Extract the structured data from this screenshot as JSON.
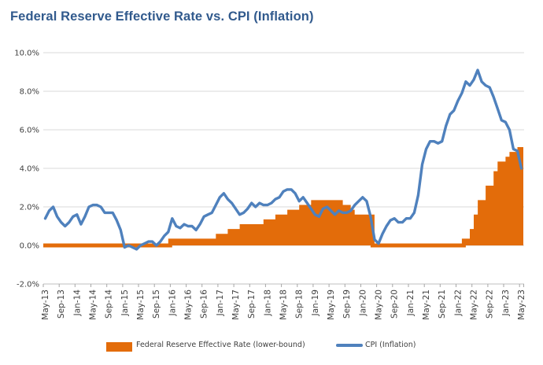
{
  "title": "Federal Reserve Effective Rate vs. CPI (Inflation)",
  "colors": {
    "background": "#FFFFFF",
    "fed": "#E36C0A",
    "cpi": "#4F81BD",
    "title": "#315A8D",
    "axis_text": "#3F3F3F",
    "gridline": "#D9D9D9",
    "axis_line": "#BFBFBF",
    "tick": "#A6A6A6"
  },
  "legend": {
    "items": [
      {
        "label": "Federal Reserve Effective Rate (lower-bound)",
        "swatch": "orange-rect"
      },
      {
        "label": "CPI (Inflation)",
        "swatch": "blue-line"
      }
    ],
    "position": "bottom"
  },
  "y_axis": {
    "tick_labels": [
      "10.0%",
      "8.0%",
      "6.0%",
      "4.0%",
      "2.0%",
      "0.0%",
      "-2.0%"
    ],
    "tick_values": [
      10,
      8,
      6,
      4,
      2,
      0,
      -2
    ]
  },
  "x_axis": {
    "tick_labels": [
      "May-13",
      "Sep-13",
      "Jan-14",
      "May-14",
      "Sep-14",
      "Jan-15",
      "May-15",
      "Sep-15",
      "Jan-16",
      "May-16",
      "Sep-16",
      "Jan-17",
      "May-17",
      "Sep-17",
      "Jan-18",
      "May-18",
      "Sep-18",
      "Jan-19",
      "May-19",
      "Sep-19",
      "Jan-20",
      "May-20",
      "Sep-20",
      "Jan-21",
      "May-21",
      "Sep-21",
      "Jan-22",
      "May-22",
      "Sep-22",
      "Jan-23",
      "May-23"
    ],
    "months_per_tick": 4,
    "label_rotation_deg": -90
  },
  "chart_data": {
    "type": "combo: stepped area (bar-style) + line",
    "x_start": "May-13",
    "x_end": "May-23",
    "x_frequency": "monthly",
    "x_count": 121,
    "ylim": [
      -2,
      10
    ],
    "y_tick_step": 2,
    "grid": "horizontal only",
    "legend_position": "bottom",
    "title": "Federal Reserve Effective Rate vs. CPI (Inflation)",
    "series": [
      {
        "name": "Federal Reserve Effective Rate (lower-bound)",
        "type": "step-area",
        "color": "#E36C0A",
        "unit": "%",
        "values": [
          0,
          0,
          0,
          0,
          0,
          0,
          0,
          0,
          0,
          0,
          0,
          0,
          0,
          0,
          0,
          0,
          0,
          0,
          0,
          0,
          0,
          0,
          0,
          0,
          0,
          0,
          0,
          0,
          0,
          0,
          0,
          0,
          0.25,
          0.25,
          0.25,
          0.25,
          0.25,
          0.25,
          0.25,
          0.25,
          0.25,
          0.25,
          0.25,
          0.25,
          0.5,
          0.5,
          0.5,
          0.75,
          0.75,
          0.75,
          1,
          1,
          1,
          1,
          1,
          1,
          1.25,
          1.25,
          1.25,
          1.5,
          1.5,
          1.5,
          1.75,
          1.75,
          1.75,
          2,
          2,
          2,
          2.25,
          2.25,
          2.25,
          2.25,
          2.25,
          2.25,
          2.25,
          2,
          2,
          1.75,
          1.5,
          1.5,
          1.5,
          1.5,
          1.5,
          0,
          0,
          0,
          0,
          0,
          0,
          0,
          0,
          0,
          0,
          0,
          0,
          0,
          0,
          0,
          0,
          0,
          0,
          0,
          0,
          0,
          0,
          0,
          0.25,
          0.25,
          0.75,
          1.5,
          2.25,
          2.25,
          3,
          3,
          3.75,
          4.25,
          4.25,
          4.5,
          4.75,
          4.75,
          5
        ]
      },
      {
        "name": "CPI (Inflation)",
        "type": "line",
        "color": "#4F81BD",
        "unit": "%",
        "values": [
          1.4,
          1.8,
          2.0,
          1.5,
          1.2,
          1.0,
          1.2,
          1.5,
          1.6,
          1.1,
          1.5,
          2.0,
          2.1,
          2.1,
          2.0,
          1.7,
          1.7,
          1.7,
          1.3,
          0.8,
          -0.1,
          0.0,
          -0.1,
          -0.2,
          0.0,
          0.1,
          0.2,
          0.2,
          0.0,
          0.2,
          0.5,
          0.7,
          1.4,
          1.0,
          0.9,
          1.1,
          1.0,
          1.0,
          0.8,
          1.1,
          1.5,
          1.6,
          1.7,
          2.1,
          2.5,
          2.7,
          2.4,
          2.2,
          1.9,
          1.6,
          1.7,
          1.9,
          2.2,
          2.0,
          2.2,
          2.1,
          2.1,
          2.2,
          2.4,
          2.5,
          2.8,
          2.9,
          2.9,
          2.7,
          2.3,
          2.5,
          2.2,
          1.9,
          1.6,
          1.5,
          1.9,
          2.0,
          1.8,
          1.6,
          1.8,
          1.7,
          1.7,
          1.8,
          2.1,
          2.3,
          2.5,
          2.3,
          1.5,
          0.3,
          0.1,
          0.6,
          1.0,
          1.3,
          1.4,
          1.2,
          1.2,
          1.4,
          1.4,
          1.7,
          2.6,
          4.2,
          5.0,
          5.4,
          5.4,
          5.3,
          5.4,
          6.2,
          6.8,
          7.0,
          7.5,
          7.9,
          8.5,
          8.3,
          8.6,
          9.1,
          8.5,
          8.3,
          8.2,
          7.7,
          7.1,
          6.5,
          6.4,
          6.0,
          5.0,
          4.9,
          4.0
        ]
      }
    ]
  }
}
